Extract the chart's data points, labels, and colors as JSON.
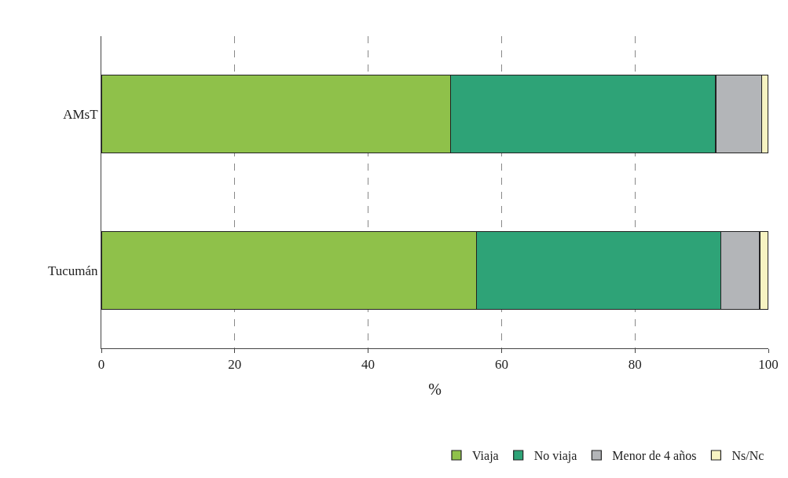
{
  "chart_data": {
    "type": "bar",
    "orientation": "horizontal",
    "stacked": true,
    "xlabel": "%",
    "categories": [
      "AMsT",
      "Tucumán"
    ],
    "series": [
      {
        "name": "Viaja",
        "color": "#8fc14a",
        "values": [
          52.4,
          56.2
        ]
      },
      {
        "name": "No viaja",
        "color": "#2ea377",
        "values": [
          39.7,
          36.7
        ]
      },
      {
        "name": "Menor de 4 años",
        "color": "#b3b5b8",
        "values": [
          6.9,
          5.8
        ]
      },
      {
        "name": "Ns/Nc",
        "color": "#f7f3c2",
        "values": [
          1.0,
          1.3
        ]
      }
    ],
    "xlim": [
      0,
      100
    ],
    "xticks": [
      0,
      20,
      40,
      60,
      80,
      100
    ],
    "grid": "x",
    "legend": "bottom right"
  }
}
